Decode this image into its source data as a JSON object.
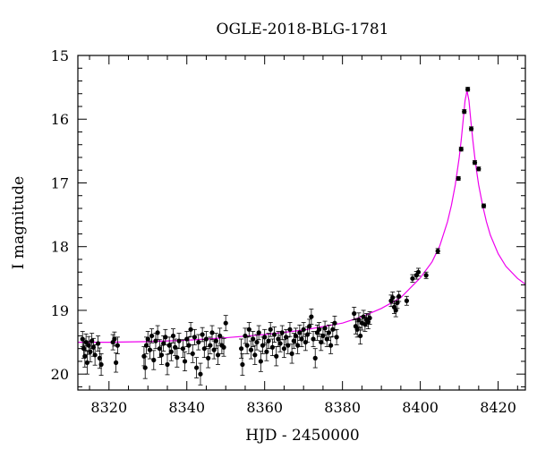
{
  "chart_data": {
    "type": "scatter",
    "title": "OGLE-2018-BLG-1781",
    "xlabel": "HJD - 2450000",
    "ylabel": "I magnitude",
    "xlim": [
      8312,
      8427
    ],
    "ylim": [
      15,
      20.25
    ],
    "y_inverted": true,
    "x_ticks": [
      8320,
      8340,
      8360,
      8380,
      8400,
      8420
    ],
    "y_ticks": [
      15,
      16,
      17,
      18,
      19,
      20
    ],
    "grid": false,
    "legend": "none",
    "colors": {
      "data": "#000000",
      "model": "#ee00ee"
    },
    "series": [
      {
        "kind": "points",
        "points": [
          [
            8313.2,
            19.45,
            0.12
          ],
          [
            8313.5,
            19.6,
            0.15
          ],
          [
            8313.8,
            19.72,
            0.17
          ],
          [
            8314.1,
            19.5,
            0.13
          ],
          [
            8314.4,
            19.82,
            0.18
          ],
          [
            8314.8,
            19.55,
            0.14
          ],
          [
            8315.2,
            19.65,
            0.16
          ],
          [
            8315.6,
            19.48,
            0.12
          ],
          [
            8316.0,
            19.58,
            0.14
          ],
          [
            8316.4,
            19.7,
            0.16
          ],
          [
            8317.2,
            19.52,
            0.12
          ],
          [
            8317.6,
            19.75,
            0.16
          ],
          [
            8318.0,
            19.85,
            0.17
          ],
          [
            8321.0,
            19.5,
            0.12
          ],
          [
            8321.4,
            19.45,
            0.11
          ],
          [
            8321.8,
            19.82,
            0.15
          ],
          [
            8322.2,
            19.55,
            0.13
          ],
          [
            8329.0,
            19.72,
            0.15
          ],
          [
            8329.3,
            19.9,
            0.17
          ],
          [
            8329.6,
            19.55,
            0.13
          ],
          [
            8330.0,
            19.45,
            0.12
          ],
          [
            8330.5,
            19.62,
            0.14
          ],
          [
            8331.0,
            19.4,
            0.11
          ],
          [
            8331.5,
            19.78,
            0.15
          ],
          [
            8332.0,
            19.48,
            0.12
          ],
          [
            8332.5,
            19.35,
            0.11
          ],
          [
            8333.0,
            19.6,
            0.14
          ],
          [
            8333.5,
            19.7,
            0.15
          ],
          [
            8334.0,
            19.52,
            0.12
          ],
          [
            8334.5,
            19.42,
            0.12
          ],
          [
            8335.0,
            19.85,
            0.16
          ],
          [
            8335.5,
            19.55,
            0.13
          ],
          [
            8336.0,
            19.65,
            0.14
          ],
          [
            8336.5,
            19.4,
            0.11
          ],
          [
            8337.0,
            19.58,
            0.13
          ],
          [
            8337.5,
            19.74,
            0.15
          ],
          [
            8338.0,
            19.48,
            0.12
          ],
          [
            8339.0,
            19.6,
            0.14
          ],
          [
            8339.5,
            19.8,
            0.15
          ],
          [
            8340.0,
            19.45,
            0.12
          ],
          [
            8340.5,
            19.55,
            0.13
          ],
          [
            8341.0,
            19.3,
            0.11
          ],
          [
            8341.5,
            19.68,
            0.14
          ],
          [
            8342.0,
            19.42,
            0.12
          ],
          [
            8342.5,
            19.9,
            0.16
          ],
          [
            8343.0,
            19.5,
            0.12
          ],
          [
            8343.5,
            20.0,
            0.17
          ],
          [
            8344.0,
            19.38,
            0.11
          ],
          [
            8344.5,
            19.6,
            0.14
          ],
          [
            8345.0,
            19.45,
            0.12
          ],
          [
            8345.5,
            19.75,
            0.15
          ],
          [
            8346.0,
            19.55,
            0.13
          ],
          [
            8346.5,
            19.35,
            0.11
          ],
          [
            8347.0,
            19.62,
            0.14
          ],
          [
            8347.5,
            19.48,
            0.12
          ],
          [
            8348.0,
            19.7,
            0.15
          ],
          [
            8348.5,
            19.4,
            0.12
          ],
          [
            8349.0,
            19.55,
            0.13
          ],
          [
            8349.5,
            19.58,
            0.14
          ],
          [
            8350.0,
            19.2,
            0.12
          ],
          [
            8354.0,
            19.6,
            0.15
          ],
          [
            8354.3,
            19.85,
            0.17
          ],
          [
            8355.0,
            19.4,
            0.12
          ],
          [
            8355.5,
            19.55,
            0.13
          ],
          [
            8356.0,
            19.3,
            0.11
          ],
          [
            8356.5,
            19.62,
            0.14
          ],
          [
            8357.0,
            19.45,
            0.12
          ],
          [
            8357.5,
            19.7,
            0.15
          ],
          [
            8358.0,
            19.5,
            0.12
          ],
          [
            8358.5,
            19.35,
            0.11
          ],
          [
            8359.0,
            19.8,
            0.16
          ],
          [
            8359.5,
            19.55,
            0.13
          ],
          [
            8360.0,
            19.42,
            0.12
          ],
          [
            8360.5,
            19.65,
            0.14
          ],
          [
            8361.0,
            19.48,
            0.12
          ],
          [
            8361.5,
            19.3,
            0.11
          ],
          [
            8362.0,
            19.58,
            0.13
          ],
          [
            8362.5,
            19.38,
            0.12
          ],
          [
            8363.0,
            19.72,
            0.15
          ],
          [
            8363.5,
            19.45,
            0.12
          ],
          [
            8364.0,
            19.52,
            0.13
          ],
          [
            8364.5,
            19.35,
            0.11
          ],
          [
            8365.0,
            19.6,
            0.14
          ],
          [
            8365.5,
            19.42,
            0.12
          ],
          [
            8366.0,
            19.55,
            0.13
          ],
          [
            8366.5,
            19.3,
            0.11
          ],
          [
            8367.0,
            19.68,
            0.15
          ],
          [
            8367.5,
            19.48,
            0.12
          ],
          [
            8368.0,
            19.4,
            0.12
          ],
          [
            8368.5,
            19.55,
            0.13
          ],
          [
            8369.0,
            19.35,
            0.12
          ],
          [
            8369.5,
            19.45,
            0.12
          ],
          [
            8370.0,
            19.3,
            0.11
          ],
          [
            8370.5,
            19.5,
            0.13
          ],
          [
            8371.0,
            19.38,
            0.12
          ],
          [
            8371.5,
            19.25,
            0.11
          ],
          [
            8372.0,
            19.1,
            0.12
          ],
          [
            8372.5,
            19.45,
            0.12
          ],
          [
            8373.0,
            19.75,
            0.15
          ],
          [
            8373.5,
            19.35,
            0.12
          ],
          [
            8374.0,
            19.3,
            0.11
          ],
          [
            8374.5,
            19.5,
            0.13
          ],
          [
            8375.0,
            19.4,
            0.12
          ],
          [
            8375.5,
            19.28,
            0.11
          ],
          [
            8376.0,
            19.45,
            0.12
          ],
          [
            8376.5,
            19.35,
            0.12
          ],
          [
            8377.0,
            19.55,
            0.13
          ],
          [
            8377.5,
            19.3,
            0.11
          ],
          [
            8378.0,
            19.2,
            0.11
          ],
          [
            8378.5,
            19.42,
            0.12
          ],
          [
            8383.0,
            19.05,
            0.1
          ],
          [
            8383.4,
            19.25,
            0.12
          ],
          [
            8383.8,
            19.3,
            0.12
          ],
          [
            8384.2,
            19.15,
            0.11
          ],
          [
            8384.6,
            19.4,
            0.13
          ],
          [
            8385.0,
            19.2,
            0.11
          ],
          [
            8385.4,
            19.1,
            0.1
          ],
          [
            8385.8,
            19.22,
            0.11
          ],
          [
            8386.2,
            19.15,
            0.1
          ],
          [
            8386.6,
            19.18,
            0.11
          ],
          [
            8387.0,
            19.12,
            0.1
          ],
          [
            8392.5,
            18.85,
            0.09
          ],
          [
            8392.9,
            18.8,
            0.09
          ],
          [
            8393.3,
            18.95,
            0.1
          ],
          [
            8393.7,
            19.0,
            0.1
          ],
          [
            8394.1,
            18.88,
            0.09
          ],
          [
            8394.5,
            18.78,
            0.08
          ],
          [
            8396.5,
            18.85,
            0.07
          ],
          [
            8398.0,
            18.5,
            0.06
          ],
          [
            8399.0,
            18.45,
            0.06
          ],
          [
            8399.5,
            18.4,
            0.06
          ],
          [
            8401.5,
            18.45,
            0.05
          ],
          [
            8404.5,
            18.07,
            0.04
          ],
          [
            8409.8,
            16.93,
            0.03
          ],
          [
            8410.5,
            16.47,
            0.03
          ],
          [
            8411.3,
            15.88,
            0.03
          ],
          [
            8412.2,
            15.53,
            0.03
          ],
          [
            8413.1,
            16.15,
            0.03
          ],
          [
            8414.0,
            16.68,
            0.03
          ],
          [
            8415.0,
            16.78,
            0.03
          ],
          [
            8416.3,
            17.36,
            0.03
          ]
        ]
      },
      {
        "kind": "model",
        "x": [
          8312,
          8320,
          8330,
          8340,
          8350,
          8360,
          8370,
          8380,
          8385,
          8390,
          8395,
          8400,
          8403,
          8405,
          8407,
          8408,
          8409,
          8410,
          8410.5,
          8411,
          8411.5,
          8412,
          8412.5,
          8413,
          8413.5,
          8414,
          8414.5,
          8415,
          8416,
          8417,
          8418,
          8420,
          8422,
          8425,
          8427
        ],
        "y": [
          19.5,
          19.5,
          19.49,
          19.47,
          19.43,
          19.38,
          19.31,
          19.2,
          19.1,
          18.97,
          18.8,
          18.49,
          18.24,
          17.99,
          17.61,
          17.35,
          17.03,
          16.6,
          16.33,
          16.03,
          15.71,
          15.55,
          15.71,
          16.03,
          16.33,
          16.6,
          16.83,
          17.03,
          17.35,
          17.61,
          17.82,
          18.11,
          18.31,
          18.5,
          18.59
        ]
      }
    ]
  }
}
